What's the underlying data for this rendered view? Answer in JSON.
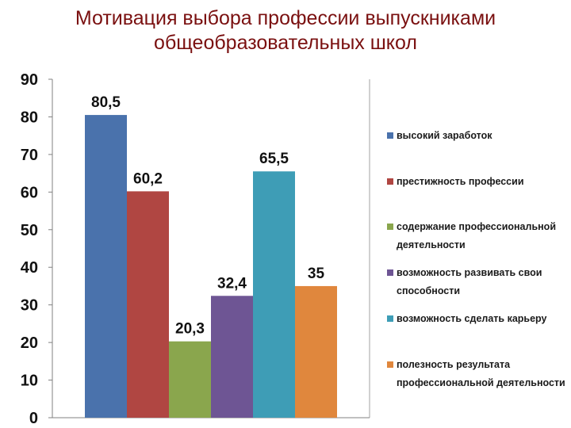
{
  "title": {
    "line1": "Мотивация выбора  профессии выпускниками",
    "line2": "общеобразовательных школ"
  },
  "chart_data": {
    "type": "bar",
    "ylim": [
      0,
      90
    ],
    "yticks": [
      0,
      10,
      20,
      30,
      40,
      50,
      60,
      70,
      80,
      90
    ],
    "grid": false,
    "legend_position": "right",
    "series": [
      {
        "name": "высокий заработок",
        "value": 80.5,
        "label": "80,5",
        "color": "#4a72ac"
      },
      {
        "name": "престижность профессии",
        "value": 60.2,
        "label": "60,2",
        "color": "#b04642"
      },
      {
        "name": "содержание профессиональной деятельности",
        "legend_lines": [
          "содержание профессиональной",
          "деятельности"
        ],
        "value": 20.3,
        "label": "20,3",
        "color": "#8aa64d"
      },
      {
        "name": "возможность развивать свои способности",
        "legend_lines": [
          "возможность развивать свои",
          "способности"
        ],
        "value": 32.4,
        "label": "32,4",
        "color": "#6e5594"
      },
      {
        "name": "возможность сделать карьеру",
        "value": 65.5,
        "label": "65,5",
        "color": "#3e9db6"
      },
      {
        "name": "полезность результата профессиональной деятельности",
        "legend_lines": [
          "полезность результата",
          "профессиональной деятельности"
        ],
        "value": 35,
        "label": "35",
        "color": "#e0873d"
      }
    ]
  }
}
